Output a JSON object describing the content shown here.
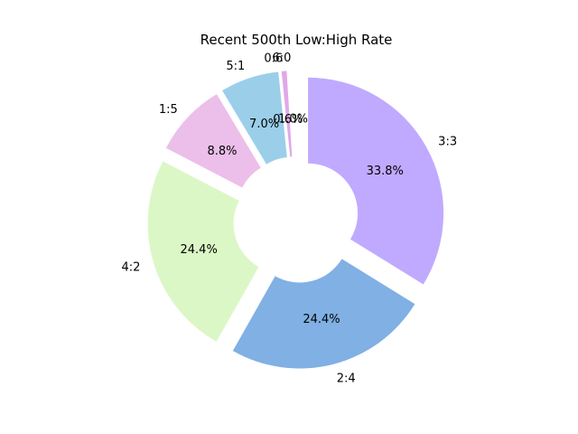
{
  "chart_data": {
    "type": "pie",
    "title": "Recent 500th Low:High Rate",
    "donut": true,
    "start_angle_deg": 90,
    "direction": "clockwise",
    "slices": [
      {
        "label": "3:3",
        "value": 33.8,
        "pct_label": "33.8%",
        "color": "#c0aaff",
        "explode": true
      },
      {
        "label": "2:4",
        "value": 24.4,
        "pct_label": "24.4%",
        "color": "#80b0e4",
        "explode": true
      },
      {
        "label": "4:2",
        "value": 24.4,
        "pct_label": "24.4%",
        "color": "#dcf7c6",
        "explode": true
      },
      {
        "label": "1:5",
        "value": 8.8,
        "pct_label": "8.8%",
        "color": "#ebbfea",
        "explode": true
      },
      {
        "label": "5:1",
        "value": 7.0,
        "pct_label": "7.0%",
        "color": "#9bcfe9",
        "explode": true
      },
      {
        "label": "0:6",
        "value": 0.6,
        "pct_label": "0.6%",
        "color": "#e0a8e8",
        "explode": true
      },
      {
        "label": "6:0",
        "value": 1.0,
        "pct_label": "1.0%",
        "color": "#ffffff",
        "explode": true
      }
    ]
  }
}
